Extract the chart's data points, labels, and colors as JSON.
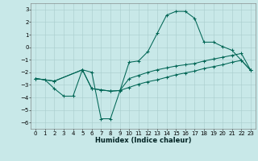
{
  "xlabel": "Humidex (Indice chaleur)",
  "background_color": "#c8e8e8",
  "grid_color": "#a8cccc",
  "line_color": "#006655",
  "xlim": [
    -0.5,
    23.5
  ],
  "ylim": [
    -6.5,
    3.5
  ],
  "yticks": [
    -6,
    -5,
    -4,
    -3,
    -2,
    -1,
    0,
    1,
    2,
    3
  ],
  "xticks": [
    0,
    1,
    2,
    3,
    4,
    5,
    6,
    7,
    8,
    9,
    10,
    11,
    12,
    13,
    14,
    15,
    16,
    17,
    18,
    19,
    20,
    21,
    22,
    23
  ],
  "series1_x": [
    0,
    1,
    2,
    3,
    4,
    5,
    6,
    7,
    8,
    9,
    10,
    11,
    12,
    13,
    14,
    15,
    16,
    17,
    18,
    19,
    20,
    21,
    22,
    23
  ],
  "series1_y": [
    -2.5,
    -2.6,
    -3.3,
    -3.9,
    -3.9,
    -1.8,
    -2.0,
    -5.7,
    -5.7,
    -3.5,
    -1.2,
    -1.1,
    -0.35,
    1.1,
    2.55,
    2.85,
    2.85,
    2.3,
    0.4,
    0.4,
    0.05,
    -0.25,
    -1.05,
    -1.85
  ],
  "series2_x": [
    0,
    2,
    5,
    6,
    7,
    8,
    9,
    10,
    11,
    12,
    13,
    14,
    15,
    16,
    17,
    18,
    19,
    20,
    21,
    22,
    23
  ],
  "series2_y": [
    -2.5,
    -2.7,
    -1.8,
    -3.3,
    -3.4,
    -3.5,
    -3.45,
    -3.2,
    -2.95,
    -2.75,
    -2.6,
    -2.4,
    -2.2,
    -2.05,
    -1.9,
    -1.7,
    -1.55,
    -1.4,
    -1.2,
    -1.05,
    -1.85
  ],
  "series3_x": [
    0,
    2,
    5,
    6,
    7,
    8,
    9,
    10,
    11,
    12,
    13,
    14,
    15,
    16,
    17,
    18,
    19,
    20,
    21,
    22,
    23
  ],
  "series3_y": [
    -2.5,
    -2.7,
    -1.8,
    -3.3,
    -3.4,
    -3.5,
    -3.45,
    -2.5,
    -2.25,
    -2.0,
    -1.8,
    -1.65,
    -1.5,
    -1.4,
    -1.3,
    -1.1,
    -0.95,
    -0.8,
    -0.65,
    -0.5,
    -1.85
  ]
}
